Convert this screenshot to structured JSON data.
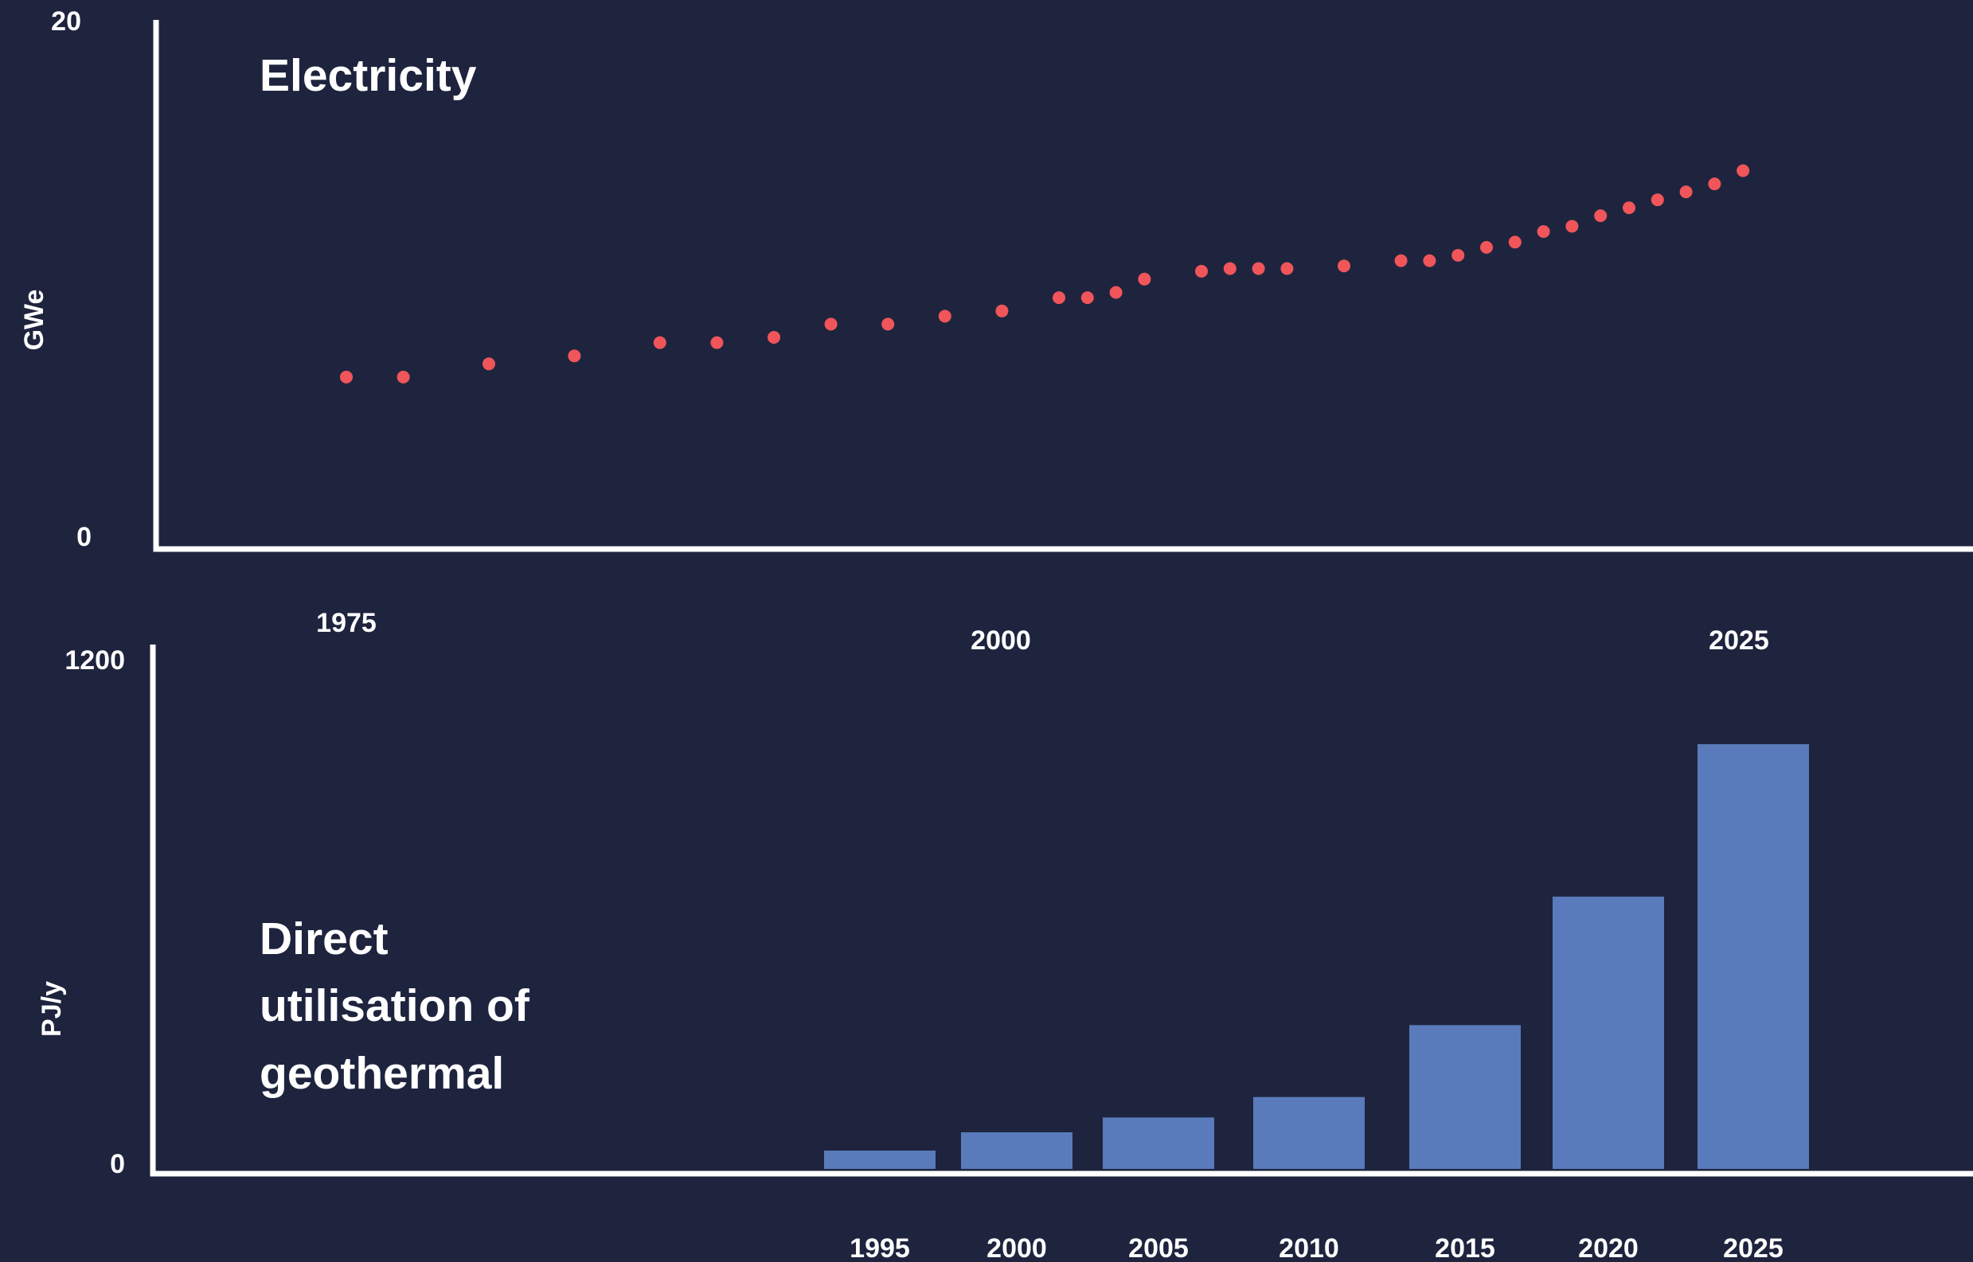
{
  "chart_data": [
    {
      "type": "scatter",
      "title": "Electricity",
      "ylabel": "GWe",
      "ylim": [
        0,
        20
      ],
      "y_ticks": [
        "0",
        "20"
      ],
      "x_ticks": [
        "1975",
        "2000",
        "2025"
      ],
      "colors": {
        "points": "#f0555a",
        "axis": "#ffffff",
        "background": "#1e243e"
      },
      "series": [
        {
          "x": [
            1975,
            1977,
            1980,
            1983,
            1986,
            1988,
            1990,
            1992,
            1994,
            1996,
            1998,
            2000,
            2001,
            2002,
            2003,
            2005,
            2006,
            2007,
            2008,
            2010,
            2012,
            2013,
            2014,
            2015,
            2016,
            2017,
            2018,
            2019,
            2020,
            2021,
            2022,
            2023,
            2024
          ],
          "y": [
            6.5,
            6.5,
            7.0,
            7.3,
            7.8,
            7.8,
            8.0,
            8.5,
            8.5,
            8.8,
            9.0,
            9.5,
            9.5,
            9.7,
            10.2,
            10.5,
            10.6,
            10.6,
            10.6,
            10.7,
            10.9,
            10.9,
            11.1,
            11.4,
            11.6,
            12.0,
            12.2,
            12.6,
            12.9,
            13.2,
            13.5,
            13.8,
            14.3
          ]
        }
      ]
    },
    {
      "type": "bar",
      "title": "Direct utilisation of geothermal",
      "title_lines": [
        "Direct",
        "utilisation of",
        "geothermal"
      ],
      "ylabel": "PJ/y",
      "ylim": [
        0,
        1200
      ],
      "y_ticks": [
        "0",
        "1200"
      ],
      "colors": {
        "bars": "#5a7bbb",
        "axis": "#ffffff",
        "background": "#1e243e"
      },
      "categories": [
        "1995",
        "2000",
        "2005",
        "2010",
        "2015",
        "2020",
        "2025"
      ],
      "values": [
        42,
        84,
        118,
        165,
        330,
        625,
        975
      ]
    }
  ]
}
